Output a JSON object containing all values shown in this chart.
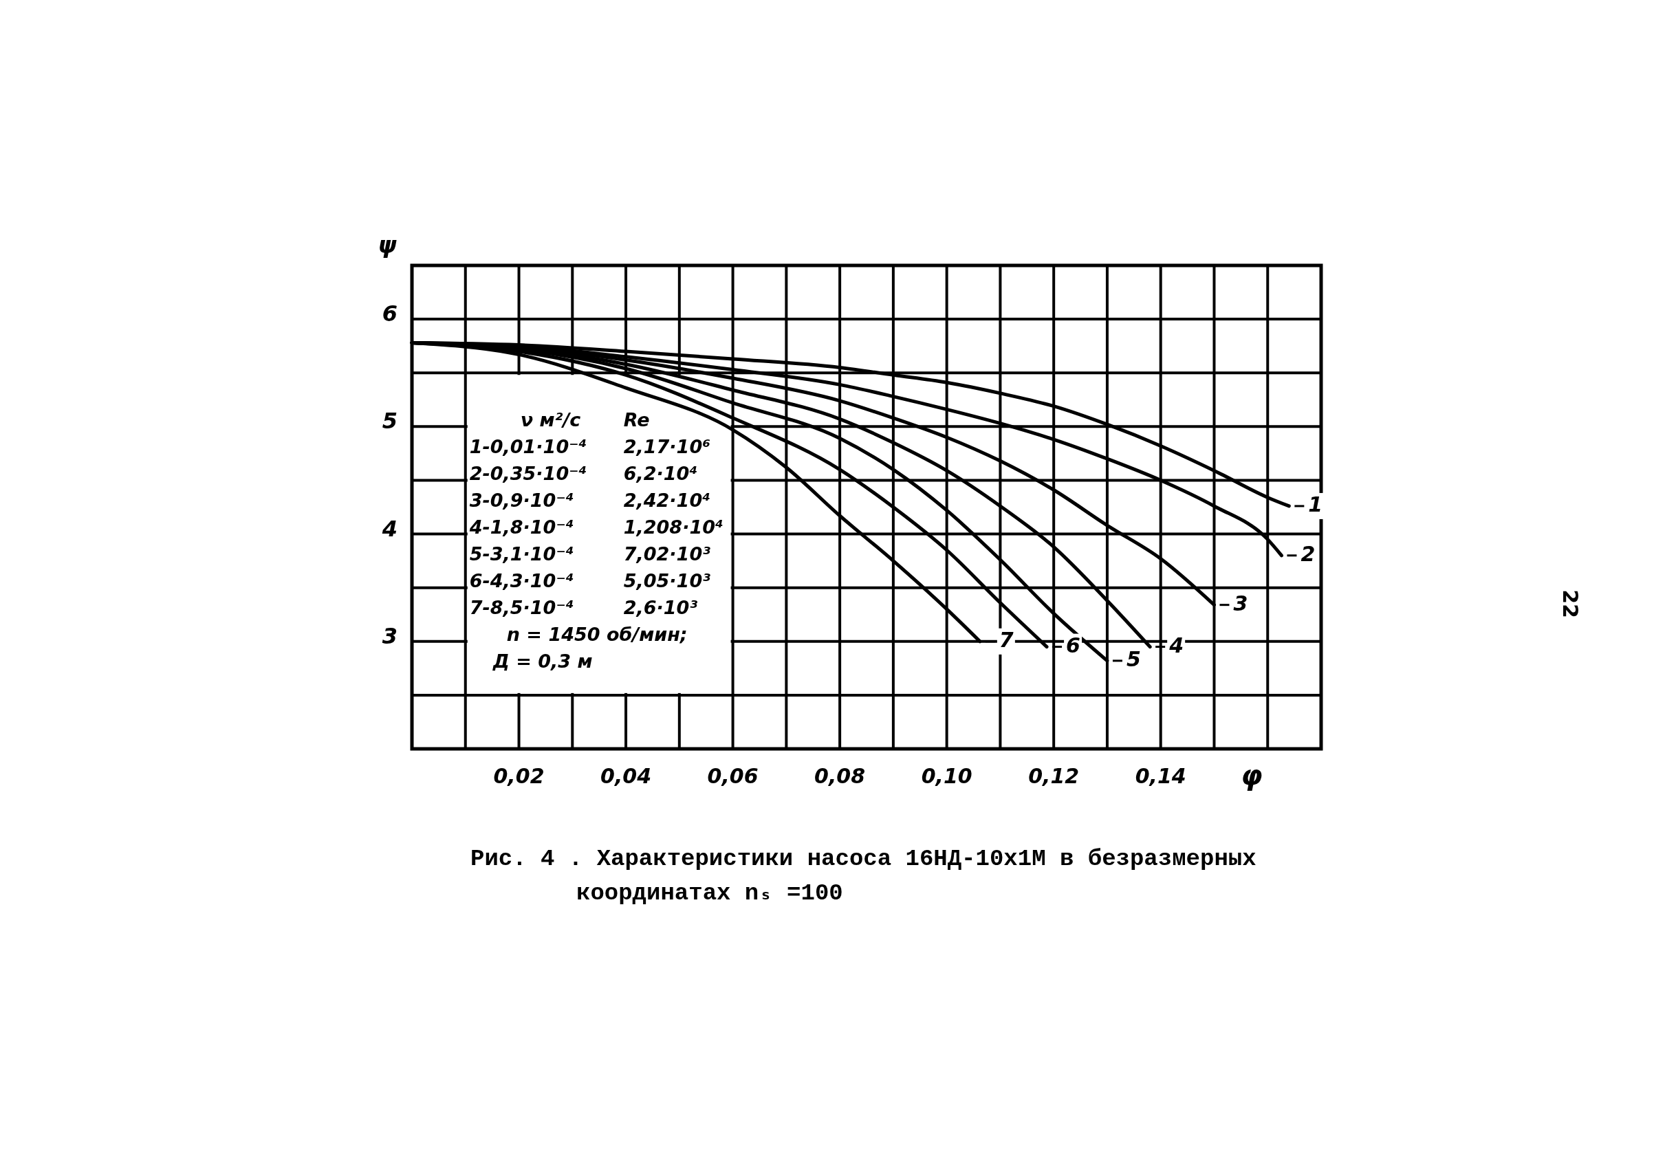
{
  "chart_data": {
    "type": "line",
    "title": "Рис. 4 . Характеристики насоса 16НД-10х1М в безразмерных координатах nₛ =100",
    "xlabel": "φ",
    "ylabel": "ψ",
    "xlim": [
      0,
      0.17
    ],
    "ylim": [
      2,
      6.5
    ],
    "xticks": [
      {
        "value": 0.01,
        "label": null
      },
      {
        "value": 0.02,
        "label": "0,02"
      },
      {
        "value": 0.03,
        "label": null
      },
      {
        "value": 0.04,
        "label": "0,04"
      },
      {
        "value": 0.05,
        "label": null
      },
      {
        "value": 0.06,
        "label": "0,06"
      },
      {
        "value": 0.07,
        "label": null
      },
      {
        "value": 0.08,
        "label": "0,08"
      },
      {
        "value": 0.09,
        "label": null
      },
      {
        "value": 0.1,
        "label": "0,10"
      },
      {
        "value": 0.11,
        "label": null
      },
      {
        "value": 0.12,
        "label": "0,12"
      },
      {
        "value": 0.13,
        "label": null
      },
      {
        "value": 0.14,
        "label": "0,14"
      },
      {
        "value": 0.15,
        "label": null
      },
      {
        "value": 0.16,
        "label": null
      }
    ],
    "yticks": [
      {
        "value": 2.5,
        "label": null
      },
      3,
      {
        "value": 3.5,
        "label": null
      },
      4,
      {
        "value": 4.5,
        "label": null
      },
      5,
      {
        "value": 5.5,
        "label": null
      },
      6
    ],
    "grid": true,
    "legend": "right",
    "marker": "none",
    "line_style": "solid",
    "series": [
      {
        "name": "1",
        "color": "#000000",
        "x": [
          0,
          0.02,
          0.04,
          0.06,
          0.08,
          0.09,
          0.1,
          0.11,
          0.12,
          0.13,
          0.14,
          0.15,
          0.16,
          0.164
        ],
        "values": [
          5.78,
          5.76,
          5.7,
          5.63,
          5.55,
          5.48,
          5.41,
          5.31,
          5.19,
          5.02,
          4.82,
          4.59,
          4.34,
          4.26
        ]
      },
      {
        "name": "2",
        "color": "#000000",
        "x": [
          0,
          0.02,
          0.04,
          0.06,
          0.08,
          0.09,
          0.1,
          0.11,
          0.12,
          0.13,
          0.14,
          0.15,
          0.16,
          0.1626
        ],
        "values": [
          5.78,
          5.75,
          5.65,
          5.53,
          5.39,
          5.28,
          5.16,
          5.03,
          4.88,
          4.7,
          4.5,
          4.26,
          3.95,
          3.8
        ]
      },
      {
        "name": "3",
        "color": "#000000",
        "x": [
          0,
          0.02,
          0.04,
          0.06,
          0.08,
          0.09,
          0.1,
          0.11,
          0.12,
          0.13,
          0.14,
          0.15
        ],
        "values": [
          5.78,
          5.74,
          5.62,
          5.45,
          5.24,
          5.08,
          4.9,
          4.68,
          4.41,
          4.08,
          3.77,
          3.34
        ]
      },
      {
        "name": "4",
        "color": "#000000",
        "x": [
          0,
          0.02,
          0.04,
          0.06,
          0.08,
          0.09,
          0.1,
          0.11,
          0.12,
          0.13,
          0.138
        ],
        "values": [
          5.78,
          5.73,
          5.58,
          5.34,
          5.07,
          4.85,
          4.59,
          4.26,
          3.88,
          3.38,
          2.95
        ]
      },
      {
        "name": "5",
        "color": "#000000",
        "x": [
          0,
          0.02,
          0.04,
          0.06,
          0.08,
          0.09,
          0.1,
          0.11,
          0.12,
          0.13
        ],
        "values": [
          5.78,
          5.72,
          5.54,
          5.22,
          4.89,
          4.6,
          4.22,
          3.76,
          3.26,
          2.82
        ]
      },
      {
        "name": "6",
        "color": "#000000",
        "x": [
          0,
          0.02,
          0.04,
          0.06,
          0.08,
          0.09,
          0.1,
          0.11,
          0.1187
        ],
        "values": [
          5.78,
          5.7,
          5.48,
          5.08,
          4.6,
          4.25,
          3.85,
          3.36,
          2.95
        ]
      },
      {
        "name": "7",
        "color": "#000000",
        "x": [
          0,
          0.02,
          0.04,
          0.06,
          0.07,
          0.08,
          0.09,
          0.1,
          0.1062
        ],
        "values": [
          5.78,
          5.67,
          5.36,
          4.97,
          4.62,
          4.17,
          3.75,
          3.3,
          3.0
        ]
      }
    ],
    "annotations": [
      "ν м²/с",
      "Re",
      "1-0,01·10⁻⁴",
      "2,17·10⁶",
      "2-0,35·10⁻⁴",
      "6,2·10⁴",
      "3-0,9·10⁻⁴",
      "2,42·10⁴",
      "4-1,8·10⁻⁴",
      "1,208·10⁴",
      "5-3,1·10⁻⁴",
      "7,02·10³",
      "6-4,3·10⁻⁴",
      "5,05·10³",
      "7-8,5·10⁻⁴",
      "2,6·10³",
      "n = 1450 об/мин;",
      "Д = 0,3 м",
      "22"
    ]
  }
}
